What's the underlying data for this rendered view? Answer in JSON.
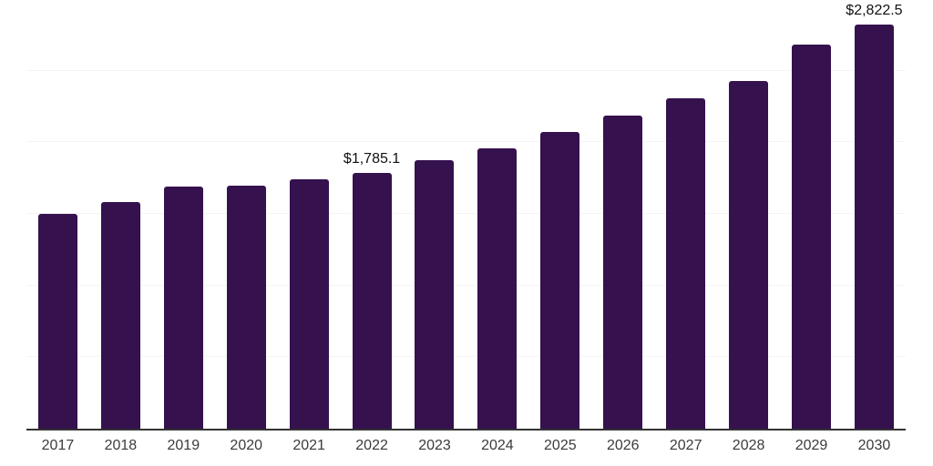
{
  "chart": {
    "colors": {
      "background": "#ffffff",
      "bar": "#35114E",
      "grid": "#f4f4f4",
      "axis_line": "#333333",
      "tick_label": "#3b3b3b",
      "data_label": "#111111"
    }
  },
  "chart_data": {
    "type": "bar",
    "title": "",
    "xlabel": "",
    "ylabel": "",
    "categories": [
      "2017",
      "2018",
      "2019",
      "2020",
      "2021",
      "2022",
      "2023",
      "2024",
      "2025",
      "2026",
      "2027",
      "2028",
      "2029",
      "2030"
    ],
    "values": [
      1500,
      1580,
      1690,
      1700,
      1740,
      1785.1,
      1875,
      1960,
      2070,
      2185,
      2305,
      2430,
      2680,
      2822.5
    ],
    "labeled_points": [
      {
        "category": "2022",
        "label": "$1,785.1"
      },
      {
        "category": "2030",
        "label": "$2,822.5"
      }
    ],
    "ylim": [
      0,
      3000
    ],
    "gridline_step": 500,
    "grid": true,
    "y_axis_labels_visible": false,
    "legend": "none"
  }
}
